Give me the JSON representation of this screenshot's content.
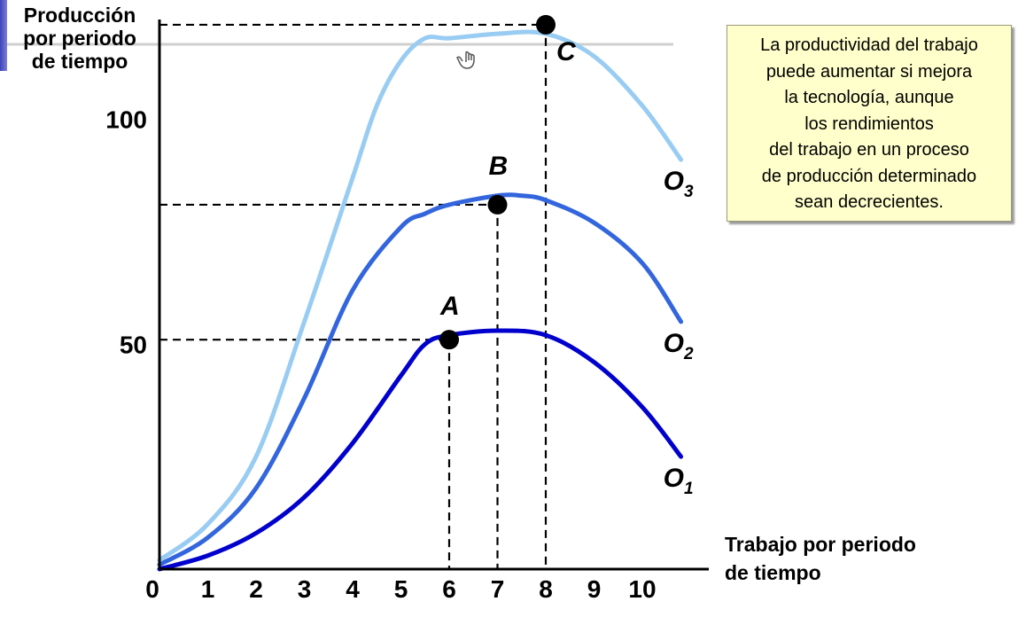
{
  "chart_data": {
    "type": "line",
    "ylabel_lines": [
      "Producción",
      "por periodo",
      "de  tiempo"
    ],
    "xlabel_lines": [
      "Trabajo por periodo",
      "de  tiempo"
    ],
    "x_ticks": [
      "0",
      "1",
      "2",
      "3",
      "4",
      "5",
      "6",
      "7",
      "8",
      "9",
      "10"
    ],
    "y_ticks": [
      "50",
      "100"
    ],
    "xlim": [
      0,
      11.2
    ],
    "ylim": [
      0,
      125
    ],
    "grid": false,
    "series": [
      {
        "name": "O",
        "subscript": "1",
        "color": "#0000cc",
        "x": [
          0,
          1,
          2,
          3,
          4,
          5,
          5.5,
          6,
          7,
          8,
          9,
          10,
          10.8
        ],
        "y": [
          0,
          3,
          8,
          16,
          28,
          43,
          50,
          52,
          53,
          52,
          46,
          36,
          25
        ]
      },
      {
        "name": "O",
        "subscript": "2",
        "color": "#3366dd",
        "x": [
          0,
          1,
          2,
          3,
          4,
          5,
          5.5,
          6,
          7,
          7.5,
          8,
          9,
          10,
          10.8
        ],
        "y": [
          1,
          7,
          18,
          38,
          62,
          76,
          79,
          81,
          83,
          83,
          82,
          77,
          68,
          55
        ]
      },
      {
        "name": "O",
        "subscript": "3",
        "color": "#99ccf2",
        "x": [
          0,
          1,
          2,
          3,
          4,
          4.5,
          5,
          5.5,
          6,
          7,
          8,
          9,
          10,
          10.8
        ],
        "y": [
          2,
          10,
          25,
          55,
          87,
          103,
          113,
          118,
          118,
          119,
          119,
          114,
          103,
          91
        ]
      }
    ],
    "points": [
      {
        "label": "A",
        "x": 6.0,
        "y": 51
      },
      {
        "label": "B",
        "x": 7.0,
        "y": 81
      },
      {
        "label": "C",
        "x": 8.0,
        "y": 121
      }
    ]
  },
  "note_lines": [
    "La productividad del trabajo",
    "puede aumentar si  mejora",
    "la tecnología, aunque",
    "los rendimientos",
    "del trabajo en un proceso",
    "de producción determinado",
    "sean decrecientes."
  ]
}
